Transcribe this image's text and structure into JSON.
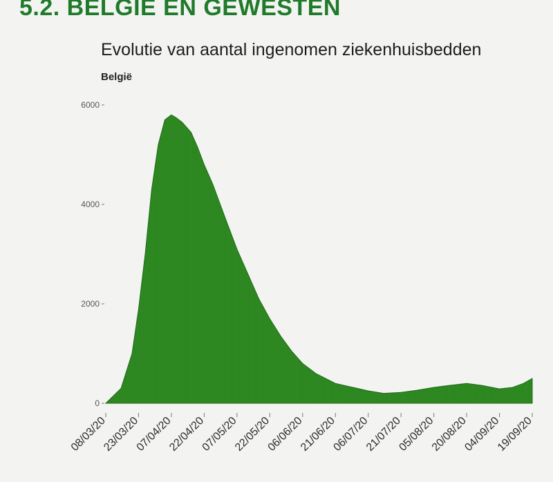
{
  "header": {
    "section_title": "5.2. BELGIË EN GEWESTEN"
  },
  "colors": {
    "area": "#2f8a22",
    "area_dark": "#1f6b16",
    "heading": "#1f7a2a"
  },
  "chart_data": {
    "type": "area",
    "title": "Evolutie van aantal ingenomen ziekenhuisbedden",
    "subtitle": "België",
    "xlabel": "",
    "ylabel": "",
    "ylim": [
      0,
      6000
    ],
    "grid": false,
    "yticks": [
      0,
      2000,
      4000,
      6000
    ],
    "ytick_labels": [
      "0",
      "2000",
      "4000",
      "6000"
    ],
    "xtick_labels": [
      "08/03/20",
      "23/03/20",
      "07/04/20",
      "22/04/20",
      "07/05/20",
      "22/05/20",
      "06/06/20",
      "21/06/20",
      "06/07/20",
      "21/07/20",
      "05/08/20",
      "20/08/20",
      "04/09/20",
      "19/09/20"
    ],
    "x_start": "2020-03-08",
    "x_end": "2020-09-19",
    "series": [
      {
        "points": [
          [
            "2020-03-08",
            0
          ],
          [
            "2020-03-15",
            300
          ],
          [
            "2020-03-20",
            1000
          ],
          [
            "2020-03-23",
            1900
          ],
          [
            "2020-03-26",
            3000
          ],
          [
            "2020-03-29",
            4300
          ],
          [
            "2020-04-01",
            5200
          ],
          [
            "2020-04-04",
            5700
          ],
          [
            "2020-04-07",
            5800
          ],
          [
            "2020-04-09",
            5750
          ],
          [
            "2020-04-12",
            5650
          ],
          [
            "2020-04-16",
            5450
          ],
          [
            "2020-04-19",
            5150
          ],
          [
            "2020-04-22",
            4800
          ],
          [
            "2020-04-26",
            4400
          ],
          [
            "2020-05-01",
            3800
          ],
          [
            "2020-05-07",
            3100
          ],
          [
            "2020-05-12",
            2600
          ],
          [
            "2020-05-17",
            2100
          ],
          [
            "2020-05-22",
            1700
          ],
          [
            "2020-05-27",
            1350
          ],
          [
            "2020-06-01",
            1050
          ],
          [
            "2020-06-06",
            800
          ],
          [
            "2020-06-12",
            600
          ],
          [
            "2020-06-21",
            400
          ],
          [
            "2020-07-01",
            300
          ],
          [
            "2020-07-06",
            250
          ],
          [
            "2020-07-13",
            200
          ],
          [
            "2020-07-21",
            220
          ],
          [
            "2020-07-28",
            260
          ],
          [
            "2020-08-05",
            320
          ],
          [
            "2020-08-12",
            360
          ],
          [
            "2020-08-20",
            400
          ],
          [
            "2020-08-27",
            360
          ],
          [
            "2020-09-04",
            290
          ],
          [
            "2020-09-10",
            320
          ],
          [
            "2020-09-15",
            400
          ],
          [
            "2020-09-19",
            500
          ]
        ]
      }
    ]
  }
}
